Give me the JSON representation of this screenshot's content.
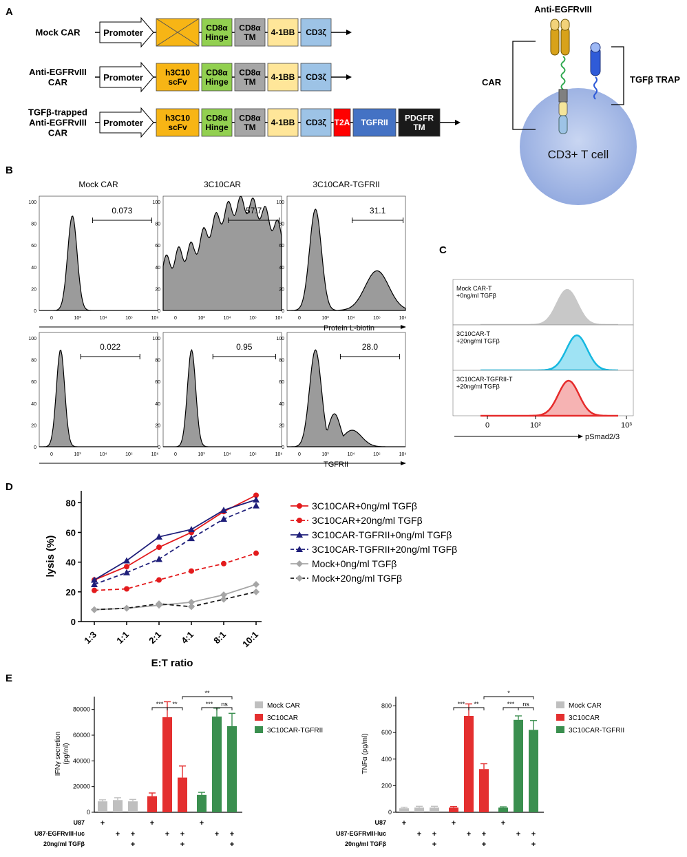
{
  "panelA": {
    "label": "A",
    "rows": [
      {
        "name_lines": [
          "Mock CAR"
        ],
        "blocks": [
          {
            "type": "promoter",
            "text": [
              "Promoter"
            ]
          },
          {
            "type": "crossed",
            "color": "#F7B515",
            "text": []
          },
          {
            "type": "box",
            "color": "#92D050",
            "text": [
              "CD8α",
              "Hinge"
            ]
          },
          {
            "type": "box",
            "color": "#A6A6A6",
            "text": [
              "CD8α",
              "TM"
            ]
          },
          {
            "type": "box",
            "color": "#FFE699",
            "text": [
              "4-1BB"
            ]
          },
          {
            "type": "box",
            "color": "#9DC3E6",
            "text": [
              "CD3ζ"
            ]
          }
        ]
      },
      {
        "name_lines": [
          "Anti-EGFRvIII",
          "CAR"
        ],
        "blocks": [
          {
            "type": "promoter",
            "text": [
              "Promoter"
            ]
          },
          {
            "type": "box",
            "color": "#F7B515",
            "text": [
              "h3C10",
              "scFv"
            ]
          },
          {
            "type": "box",
            "color": "#92D050",
            "text": [
              "CD8α",
              "Hinge"
            ]
          },
          {
            "type": "box",
            "color": "#A6A6A6",
            "text": [
              "CD8α",
              "TM"
            ]
          },
          {
            "type": "box",
            "color": "#FFE699",
            "text": [
              "4-1BB"
            ]
          },
          {
            "type": "box",
            "color": "#9DC3E6",
            "text": [
              "CD3ζ"
            ]
          }
        ]
      },
      {
        "name_lines": [
          "TGFβ-trapped",
          "Anti-EGFRvIII",
          "CAR"
        ],
        "blocks": [
          {
            "type": "promoter",
            "text": [
              "Promoter"
            ]
          },
          {
            "type": "box",
            "color": "#F7B515",
            "text": [
              "h3C10",
              "scFv"
            ]
          },
          {
            "type": "box",
            "color": "#92D050",
            "text": [
              "CD8α",
              "Hinge"
            ]
          },
          {
            "type": "box",
            "color": "#A6A6A6",
            "text": [
              "CD8α",
              "TM"
            ]
          },
          {
            "type": "box",
            "color": "#FFE699",
            "text": [
              "4-1BB"
            ]
          },
          {
            "type": "box",
            "color": "#9DC3E6",
            "text": [
              "CD3ζ"
            ]
          },
          {
            "type": "box",
            "color": "#FF0000",
            "text": [
              "T2A"
            ],
            "text_color": "#FFFFFF"
          },
          {
            "type": "box",
            "color": "#4472C4",
            "text": [
              "TGFRII"
            ],
            "text_color": "#FFFFFF"
          },
          {
            "type": "box",
            "color": "#1A1A1A",
            "text": [
              "PDGFR",
              "TM"
            ],
            "text_color": "#FFFFFF"
          }
        ]
      }
    ],
    "cartoon": {
      "antibody_label": "Anti-EGFRvIII",
      "car_label": "CAR",
      "trap_label": "TGFβ TRAP",
      "cell_label": "CD3+ T cell"
    }
  },
  "panelB": {
    "label": "B",
    "columns": [
      "Mock CAR",
      "3C10CAR",
      "3C10CAR-TGFRII"
    ],
    "y_ticks": [
      "100",
      "80",
      "60",
      "40",
      "20",
      "0"
    ],
    "x_ticks": [
      "0",
      "10³",
      "10⁴",
      "10⁵",
      "10⁶"
    ],
    "rows": [
      {
        "axis_label": "Protein L-biotin",
        "gates": [
          "0.073",
          "57.7",
          "31.1"
        ]
      },
      {
        "axis_label": "TGFRII",
        "gates": [
          "0.022",
          "0.95",
          "28.0"
        ]
      }
    ]
  },
  "panelC": {
    "label": "C",
    "tracks": [
      {
        "label": [
          "Mock CAR-T",
          "+0ng/ml TGFβ"
        ],
        "fill": "#C8C8C8",
        "stroke": "#C8C8C8"
      },
      {
        "label": [
          "3C10CAR-T",
          "+20ng/ml TGFβ"
        ],
        "fill": "#9FE3F4",
        "stroke": "#16B8E0"
      },
      {
        "label": [
          "3C10CAR-TGFRII-T",
          "+20ng/ml TGFβ"
        ],
        "fill": "#F6B3B3",
        "stroke": "#E62B2B"
      }
    ],
    "x_ticks": [
      "0",
      "10²",
      "10³"
    ],
    "axis_label": "pSmad2/3"
  },
  "panelE": {
    "label": "E",
    "row_labels": [
      "U87",
      "U87-EGFRvIII-luc",
      "20ng/ml TGFβ"
    ],
    "signs": [
      [
        "+",
        "",
        ""
      ],
      [
        "",
        "+",
        ""
      ],
      [
        "",
        "+",
        "+"
      ],
      [
        "+",
        "",
        ""
      ],
      [
        "",
        "+",
        ""
      ],
      [
        "",
        "+",
        "+"
      ],
      [
        "+",
        "",
        ""
      ],
      [
        "",
        "+",
        ""
      ],
      [
        "",
        "+",
        "+"
      ]
    ]
  },
  "chart_data": [
    {
      "type": "line",
      "panel": "D",
      "title": "",
      "xlabel": "E:T ratio",
      "ylabel": "lysis (%)",
      "categories": [
        "1:3",
        "1:1",
        "2:1",
        "4:1",
        "8:1",
        "10:1"
      ],
      "yticks": [
        0,
        20,
        40,
        60,
        80
      ],
      "ylim": [
        0,
        88
      ],
      "series": [
        {
          "name": "3C10CAR+0ng/ml TGFβ",
          "values": [
            28,
            37,
            50,
            60,
            74,
            85
          ],
          "color": "#E31A1C",
          "dashed": false,
          "marker": "circle"
        },
        {
          "name": "3C10CAR+20ng/ml TGFβ",
          "values": [
            21,
            22,
            28,
            34,
            39,
            46
          ],
          "color": "#E31A1C",
          "dashed": true,
          "marker": "circle"
        },
        {
          "name": "3C10CAR-TGFRII+0ng/ml TGFβ",
          "values": [
            28,
            41,
            57,
            62,
            75,
            82
          ],
          "color": "#1F1F7A",
          "dashed": false,
          "marker": "triangle"
        },
        {
          "name": "3C10CAR-TGFRII+20ng/ml TGFβ",
          "values": [
            25,
            33,
            42,
            56,
            69,
            78
          ],
          "color": "#1F1F7A",
          "dashed": true,
          "marker": "triangle"
        },
        {
          "name": "Mock+0ng/ml TGFβ",
          "values": [
            8,
            9,
            11,
            13,
            18,
            25
          ],
          "color": "#A6A6A6",
          "dashed": false,
          "marker": "diamond"
        },
        {
          "name": "Mock+20ng/ml TGFβ",
          "values": [
            8,
            9,
            12,
            10,
            15,
            20
          ],
          "color": "#1A1A1A",
          "dashed": true,
          "marker": "diamond",
          "marker_color": "#A6A6A6"
        }
      ]
    },
    {
      "type": "bar",
      "panel": "E-left",
      "ylabel_lines": [
        "IFNγ secretion",
        "(pg/ml)"
      ],
      "yticks": [
        0,
        20000,
        40000,
        60000,
        80000
      ],
      "ylim": [
        0,
        90000
      ],
      "series": [
        {
          "name": "Mock CAR",
          "color": "#BFBFBF",
          "values": [
            8500,
            9500,
            8500
          ],
          "errors": [
            1200,
            1800,
            1500
          ]
        },
        {
          "name": "3C10CAR",
          "color": "#E42F2F",
          "values": [
            12500,
            74000,
            27000
          ],
          "errors": [
            2500,
            12000,
            9000
          ]
        },
        {
          "name": "3C10CAR-TGFRII",
          "color": "#3A8F4F",
          "values": [
            13500,
            74500,
            67000
          ],
          "errors": [
            2000,
            6500,
            10000
          ]
        }
      ],
      "significance": [
        "***",
        "**",
        "**",
        "***",
        "ns"
      ]
    },
    {
      "type": "bar",
      "panel": "E-right",
      "ylabel_lines": [
        "TNFα (pg/ml)"
      ],
      "yticks": [
        0,
        200,
        400,
        600,
        800
      ],
      "ylim": [
        0,
        870
      ],
      "series": [
        {
          "name": "Mock CAR",
          "color": "#BFBFBF",
          "values": [
            30,
            35,
            35
          ],
          "errors": [
            8,
            10,
            10
          ]
        },
        {
          "name": "3C10CAR",
          "color": "#E42F2F",
          "values": [
            35,
            725,
            325
          ],
          "errors": [
            8,
            90,
            40
          ]
        },
        {
          "name": "3C10CAR-TGFRII",
          "color": "#3A8F4F",
          "values": [
            35,
            695,
            620
          ],
          "errors": [
            6,
            30,
            70
          ]
        }
      ],
      "significance": [
        "***",
        "**",
        "*",
        "***",
        "ns"
      ]
    }
  ]
}
